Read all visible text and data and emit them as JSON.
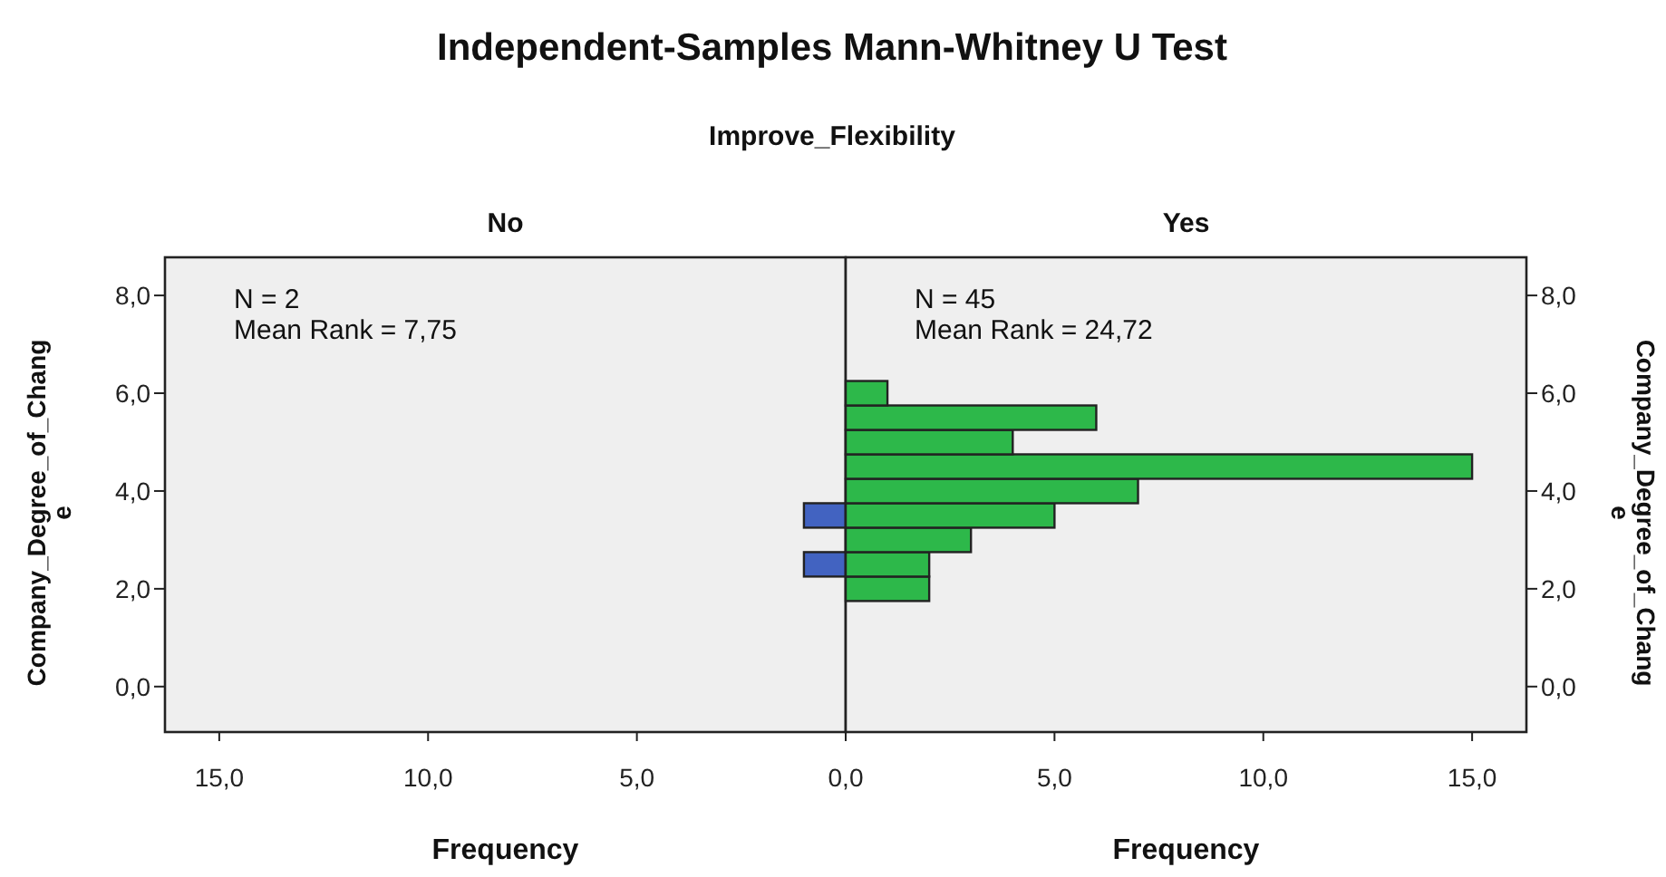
{
  "chart_data": [
    {
      "type": "other",
      "title": "Independent-Samples Mann-Whitney U Test",
      "subtitle": "Improve_Flexibility"
    },
    {
      "type": "histogram",
      "orientation": "horizontal",
      "title": "No",
      "xlabel": "Frequency",
      "ylabel": "Company_Degree_of_Change",
      "annotations": [
        "N = 2",
        "Mean Rank = 7,75"
      ],
      "bins": [
        2.25,
        2.75,
        3.25,
        3.75
      ],
      "values": [
        1,
        0,
        1
      ],
      "color": "#4263c1",
      "xlim": [
        16.3,
        0
      ],
      "xticks": [
        {
          "value": 15,
          "label": "15,0"
        },
        {
          "value": 10,
          "label": "10,0"
        },
        {
          "value": 5,
          "label": "5,0"
        },
        {
          "value": 0,
          "label": null
        }
      ],
      "ylim": [
        -0.93,
        8.78
      ],
      "yticks": [
        {
          "value": 0,
          "label": "0,0"
        },
        {
          "value": 2,
          "label": "2,0"
        },
        {
          "value": 4,
          "label": "4,0"
        },
        {
          "value": 6,
          "label": "6,0"
        },
        {
          "value": 8,
          "label": "8,0"
        }
      ]
    },
    {
      "type": "histogram",
      "orientation": "horizontal",
      "title": "Yes",
      "xlabel": "Frequency",
      "ylabel": "Company_Degree_of_Change",
      "annotations": [
        "N = 45",
        "Mean Rank = 24,72"
      ],
      "bins": [
        1.75,
        2.25,
        2.75,
        3.25,
        3.75,
        4.25,
        4.75,
        5.25,
        5.75,
        6.25
      ],
      "values": [
        2,
        2,
        3,
        5,
        7,
        15,
        4,
        6,
        1
      ],
      "color": "#2db84a",
      "xlim": [
        0,
        16.3
      ],
      "xticks": [
        {
          "value": 0,
          "label": "0,0"
        },
        {
          "value": 5,
          "label": "5,0"
        },
        {
          "value": 10,
          "label": "10,0"
        },
        {
          "value": 15,
          "label": "15,0"
        }
      ],
      "ylim": [
        -0.93,
        8.78
      ],
      "yticks": [
        {
          "value": 0,
          "label": "0,0"
        },
        {
          "value": 2,
          "label": "2,0"
        },
        {
          "value": 4,
          "label": "4,0"
        },
        {
          "value": 6,
          "label": "6,0"
        },
        {
          "value": 8,
          "label": "8,0"
        }
      ]
    }
  ]
}
